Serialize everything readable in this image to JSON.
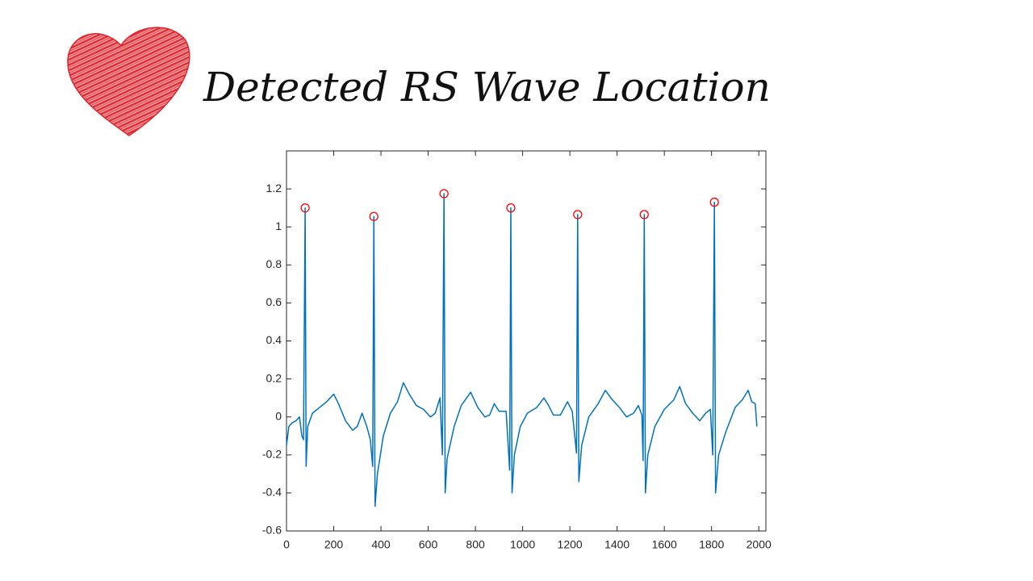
{
  "chart_data": {
    "type": "line",
    "title": "Detected RS Wave Location",
    "xlim": [
      0,
      2030
    ],
    "xticks": [
      0,
      200,
      400,
      600,
      800,
      1000,
      1200,
      1400,
      1600,
      1800,
      2000
    ],
    "ylim": [
      -0.6,
      1.4
    ],
    "yticks": [
      -0.6,
      -0.4,
      -0.2,
      0,
      0.2,
      0.4,
      0.6,
      0.8,
      1,
      1.2
    ],
    "grid": false,
    "series": [
      {
        "type": "line",
        "color": "#0072bd",
        "x": [
          0,
          10,
          25,
          40,
          55,
          65,
          72,
          79,
          83,
          90,
          110,
          140,
          170,
          200,
          220,
          250,
          280,
          300,
          320,
          340,
          355,
          365,
          370,
          375,
          385,
          410,
          440,
          470,
          495,
          520,
          550,
          580,
          610,
          630,
          650,
          660,
          667,
          672,
          680,
          710,
          740,
          780,
          810,
          840,
          860,
          880,
          900,
          930,
          945,
          950,
          955,
          965,
          990,
          1020,
          1060,
          1090,
          1110,
          1130,
          1160,
          1190,
          1210,
          1228,
          1233,
          1238,
          1250,
          1280,
          1320,
          1350,
          1380,
          1410,
          1440,
          1470,
          1490,
          1505,
          1510,
          1515,
          1520,
          1530,
          1560,
          1600,
          1640,
          1665,
          1690,
          1720,
          1750,
          1775,
          1795,
          1805,
          1812,
          1817,
          1830,
          1860,
          1900,
          1930,
          1955,
          1970,
          1985,
          1992
        ],
        "values": [
          -0.15,
          -0.05,
          -0.03,
          -0.02,
          0.0,
          -0.1,
          -0.12,
          1.1,
          -0.26,
          -0.05,
          0.02,
          0.05,
          0.08,
          0.12,
          0.07,
          -0.02,
          -0.07,
          -0.05,
          0.02,
          -0.05,
          -0.12,
          -0.26,
          1.055,
          -0.47,
          -0.3,
          -0.1,
          0.02,
          0.08,
          0.18,
          0.12,
          0.06,
          0.04,
          0.0,
          0.02,
          0.1,
          -0.2,
          1.175,
          -0.4,
          -0.22,
          -0.05,
          0.06,
          0.13,
          0.05,
          0.0,
          0.01,
          0.07,
          0.03,
          0.03,
          -0.28,
          1.1,
          -0.4,
          -0.2,
          -0.05,
          0.02,
          0.05,
          0.1,
          0.06,
          0.01,
          0.01,
          0.08,
          0.03,
          -0.19,
          1.065,
          -0.34,
          -0.15,
          0.0,
          0.07,
          0.14,
          0.09,
          0.05,
          0.0,
          0.02,
          0.06,
          0.01,
          -0.23,
          1.065,
          -0.4,
          -0.2,
          -0.05,
          0.04,
          0.09,
          0.16,
          0.07,
          0.02,
          -0.02,
          0.02,
          0.04,
          -0.2,
          1.13,
          -0.4,
          -0.2,
          -0.08,
          0.05,
          0.09,
          0.14,
          0.08,
          0.07,
          -0.05
        ]
      },
      {
        "type": "scatter",
        "color": "#ff0000",
        "x": [
          79,
          370,
          667,
          950,
          1233,
          1515,
          1812
        ],
        "values": [
          1.1,
          1.055,
          1.175,
          1.1,
          1.065,
          1.065,
          1.13
        ]
      }
    ]
  }
}
